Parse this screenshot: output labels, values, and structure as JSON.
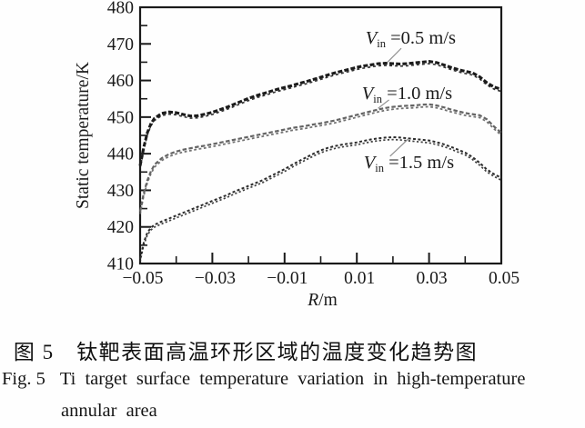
{
  "figure": {
    "caption_zh": "图 5　钛靶表面高温环形区域的温度变化趋势图",
    "caption_en_label": "Fig. 5",
    "caption_en_line1": "Ti target surface temperature variation in high-temperature",
    "caption_en_line2": "annular area"
  },
  "colors": {
    "axis": "#1a1a1a",
    "series_05": "#1b1b1b",
    "series_10": "#646464",
    "series_15": "#2b2b2b",
    "leader_line": "#8f8f8f",
    "background": "#fefefe"
  },
  "chart_data": {
    "type": "scatter",
    "title": "",
    "xlabel_symbol": "R",
    "xlabel_unit": "/m",
    "ylabel": "Static temperature/K",
    "xlim": [
      -0.05,
      0.05
    ],
    "ylim": [
      410,
      480
    ],
    "grid": false,
    "legend_position": "inline-annotations",
    "x_major_ticks": [
      -0.05,
      -0.03,
      -0.01,
      0.01,
      0.03,
      0.05
    ],
    "x_tick_labels": [
      "−0.05",
      "−0.03",
      "−0.01",
      "0.01",
      "0.03",
      "0.05"
    ],
    "x_minor_ticks": [
      -0.04,
      -0.02,
      0,
      0.02,
      0.04
    ],
    "y_major_ticks": [
      410,
      420,
      430,
      440,
      450,
      460,
      470,
      480
    ],
    "y_tick_labels": [
      "410",
      "420",
      "430",
      "440",
      "450",
      "460",
      "470",
      "480"
    ],
    "y_minor_ticks": [
      415,
      425,
      435,
      445,
      455,
      465,
      475
    ],
    "x": [
      -0.05,
      -0.049,
      -0.048,
      -0.047,
      -0.046,
      -0.044,
      -0.042,
      -0.04,
      -0.038,
      -0.036,
      -0.034,
      -0.032,
      -0.03,
      -0.028,
      -0.026,
      -0.024,
      -0.022,
      -0.02,
      -0.018,
      -0.016,
      -0.014,
      -0.012,
      -0.01,
      -0.008,
      -0.006,
      -0.004,
      -0.002,
      0,
      0.002,
      0.004,
      0.006,
      0.008,
      0.01,
      0.012,
      0.014,
      0.016,
      0.018,
      0.02,
      0.022,
      0.024,
      0.026,
      0.028,
      0.03,
      0.032,
      0.034,
      0.036,
      0.038,
      0.04,
      0.042,
      0.044,
      0.046,
      0.048,
      0.05
    ],
    "series": [
      {
        "name": "Vin=0.5 m/s",
        "values": [
          436.5,
          441.5,
          445.5,
          448,
          449.5,
          450.8,
          451.2,
          451,
          450.5,
          450.1,
          450.2,
          450.6,
          451.1,
          451.8,
          452.5,
          453.3,
          454.1,
          454.9,
          455.6,
          456.2,
          456.8,
          457.4,
          457.9,
          458.4,
          459,
          459.5,
          460.1,
          460.7,
          461.3,
          461.9,
          462.4,
          462.9,
          463.4,
          463.8,
          464.1,
          464.4,
          464.5,
          464.4,
          464.3,
          464.4,
          464.6,
          464.8,
          465,
          464.7,
          464.1,
          463.4,
          462.8,
          462.3,
          461.9,
          460.8,
          459.2,
          458,
          457.4
        ]
      },
      {
        "name": "Vin=1.0 m/s",
        "values": [
          424,
          429,
          432.5,
          435,
          436.8,
          438.6,
          439.7,
          440.4,
          440.9,
          441.3,
          441.7,
          442,
          442.4,
          442.8,
          443.2,
          443.6,
          444,
          444.4,
          444.8,
          445.2,
          445.6,
          446,
          446.4,
          446.8,
          447.1,
          447.4,
          447.8,
          448.1,
          448.5,
          448.9,
          449.4,
          449.9,
          450.4,
          450.9,
          451.4,
          451.9,
          452.3,
          452.6,
          452.8,
          452.9,
          453,
          453.2,
          453.3,
          453,
          452.5,
          451.9,
          451.4,
          450.9,
          450.6,
          450.3,
          449.2,
          447.2,
          445.5
        ]
      },
      {
        "name": "Vin=1.5 m/s",
        "values": [
          411,
          415.5,
          418.2,
          419.6,
          420.4,
          421.3,
          422.1,
          422.9,
          423.7,
          424.5,
          425.3,
          426.1,
          426.9,
          427.7,
          428.5,
          429.4,
          430.2,
          431,
          431.8,
          432.6,
          433.6,
          434.6,
          435.6,
          436.7,
          437.8,
          438.8,
          439.8,
          440.7,
          441.4,
          441.9,
          442.3,
          442.6,
          442.9,
          443.3,
          443.7,
          444,
          444.2,
          444.3,
          444.2,
          444,
          443.8,
          443.6,
          443.4,
          443,
          442.4,
          441.7,
          440.9,
          440.1,
          438.9,
          437.3,
          435.5,
          434.2,
          433.2
        ]
      }
    ],
    "annotations": [
      {
        "symbol": "V",
        "subscript": "in",
        "rest": " =0.5 m/s",
        "label_anchor_data": [
          0.0124,
          474.3
        ],
        "leader": [
          [
            0.0223,
            468.8
          ],
          [
            0.0184,
            464.9
          ]
        ]
      },
      {
        "symbol": "V",
        "subscript": "in",
        "rest": " =1.0 m/s",
        "label_anchor_data": [
          0.0114,
          459.2
        ],
        "leader": [
          [
            0.0189,
            454.7
          ],
          [
            0.0159,
            452.4
          ]
        ]
      },
      {
        "symbol": "V",
        "subscript": "in",
        "rest": " =1.5 m/s",
        "label_anchor_data": [
          0.0119,
          440.3
        ],
        "leader": [
          [
            0.0192,
            439.3
          ],
          [
            0.0242,
            444.0
          ]
        ]
      }
    ]
  }
}
